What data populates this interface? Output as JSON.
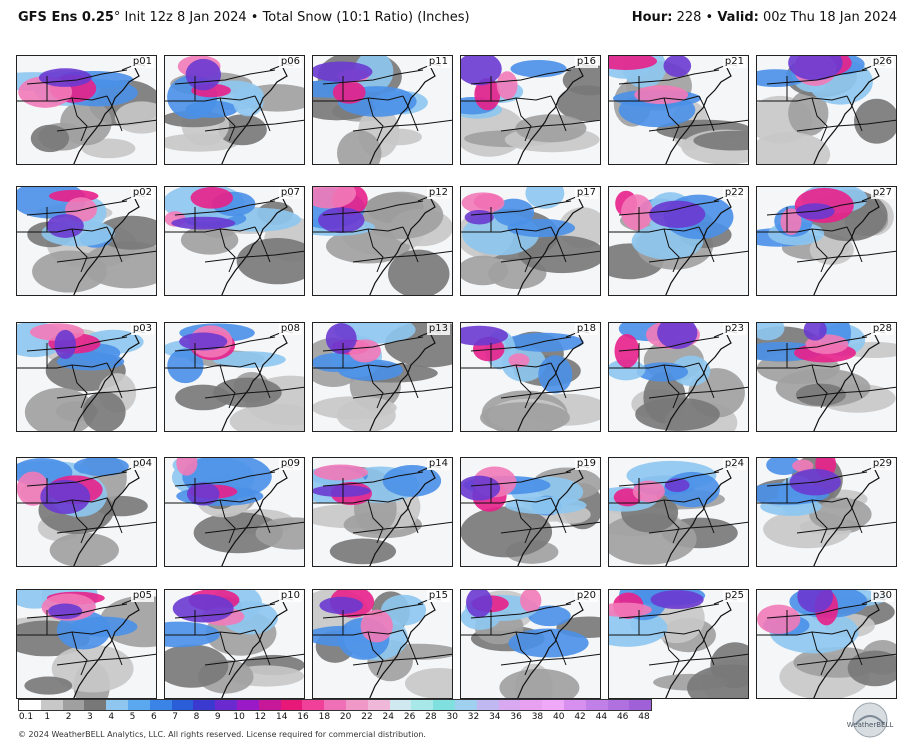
{
  "header": {
    "model": "GFS Ens 0.25",
    "degree": "°",
    "init": " Init 12z 8 Jan 2024",
    "sep": " • ",
    "product": "Total Snow (10:1 Ratio) (Inches)",
    "hour_label": "Hour:",
    "hour_value": " 228",
    "valid_label": "Valid:",
    "valid_value": " 00z Thu 18 Jan 2024"
  },
  "members": [
    "p01",
    "p06",
    "p11",
    "p16",
    "p21",
    "p26",
    "p02",
    "p07",
    "p12",
    "p17",
    "p22",
    "p27",
    "p03",
    "p08",
    "p13",
    "p18",
    "p23",
    "p28",
    "p04",
    "p09",
    "p14",
    "p19",
    "p24",
    "p29",
    "p05",
    "p10",
    "p15",
    "p20",
    "p25",
    "p30"
  ],
  "colorbar": {
    "ticks": [
      "0.1",
      "1",
      "2",
      "3",
      "4",
      "5",
      "6",
      "7",
      "8",
      "9",
      "10",
      "12",
      "14",
      "16",
      "18",
      "20",
      "22",
      "24",
      "26",
      "28",
      "30",
      "32",
      "34",
      "36",
      "38",
      "40",
      "42",
      "44",
      "46",
      "48"
    ],
    "colors": [
      "#ffffff",
      "#c8c8c8",
      "#a0a0a0",
      "#787878",
      "#8ec6f0",
      "#5aa8f0",
      "#3a84e8",
      "#2a5ed8",
      "#3a3ad0",
      "#6a2ad0",
      "#9a1ac8",
      "#c8189a",
      "#e81878",
      "#f0409a",
      "#f070b8",
      "#f098c8",
      "#f0b8d8",
      "#d0e8f0",
      "#a8e8e8",
      "#80e0e0",
      "#a0d0f0",
      "#c0b8f0",
      "#d8a8f0",
      "#e8a0f0",
      "#f0a8f8",
      "#d890f0",
      "#c080e8",
      "#b070e0",
      "#a060d8"
    ]
  },
  "copyright": "© 2024 WeatherBELL Analytics, LLC. All rights reserved. License required for commercial distribution.",
  "logo": "WeatherBELL",
  "map_colors": {
    "gray_light": "#c8c8c8",
    "gray_mid": "#a0a0a0",
    "gray_dark": "#787878",
    "blue_light": "#8ec6f0",
    "blue": "#4a90e8",
    "purple": "#6a3ad0",
    "pink": "#e8208a",
    "pink_light": "#f27ab8"
  }
}
